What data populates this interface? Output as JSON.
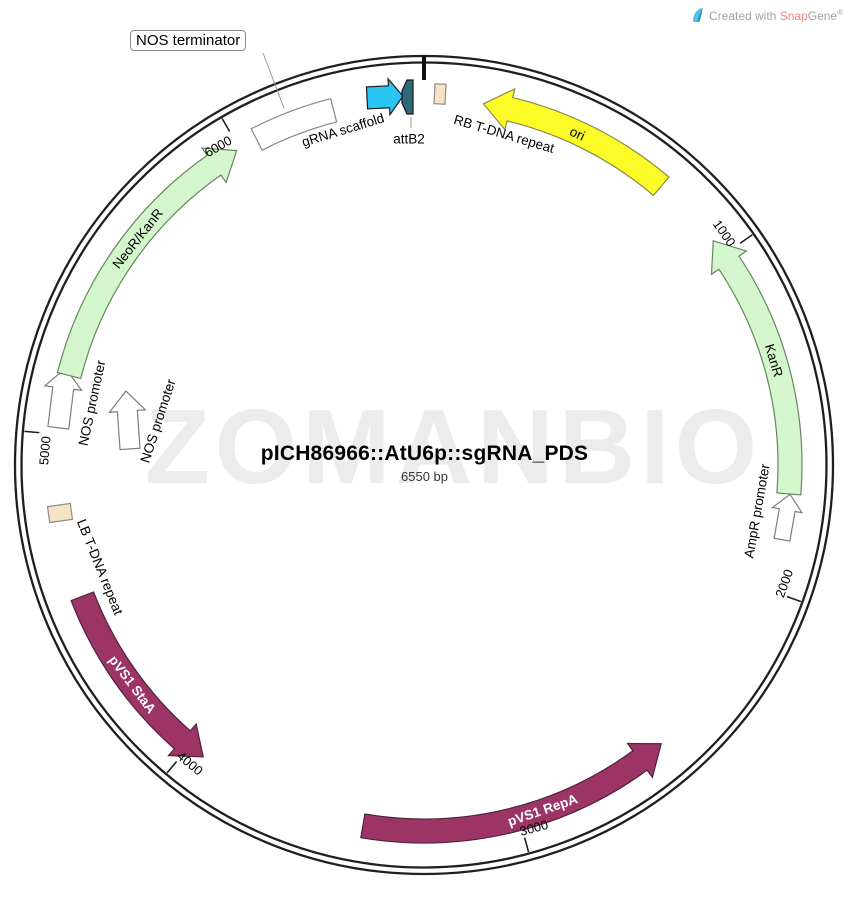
{
  "credit": {
    "created_with": "Created with",
    "brand_snap": "Snap",
    "brand_gene": "Gene",
    "registered": "®",
    "logo_color": "#55c0e8"
  },
  "watermark": "ZOMANBIO",
  "plasmid": {
    "name": "pICH86966::AtU6p::sgRNA_PDS",
    "size_label": "6550 bp",
    "size_bp": 6550,
    "ticks": [
      {
        "bp": 1000,
        "label": "1000"
      },
      {
        "bp": 2000,
        "label": "2000"
      },
      {
        "bp": 3000,
        "label": "3000"
      },
      {
        "bp": 4000,
        "label": "4000"
      },
      {
        "bp": 5000,
        "label": "5000"
      },
      {
        "bp": 6000,
        "label": "6000"
      }
    ],
    "colors": {
      "backbone": "#1f1f1f",
      "cds_green": "#d4f6cc",
      "cds_green_stroke": "#69845f",
      "ori_yellow": "#fbfb28",
      "ori_yellow_stroke": "#8a8a4e",
      "rep_maroon": "#9c3566",
      "rep_maroon_stroke": "#4f2240",
      "scaffold_cyan": "#29c6f3",
      "attb_teal": "#2e6a7c",
      "tdna_tan": "#f6e3c3",
      "white_feature": "#ffffff",
      "feature_gray_stroke": "#7d7d7d"
    },
    "features": [
      {
        "id": "ori",
        "label": "ori",
        "shape": "arc-arrow",
        "start": 170,
        "end": 735,
        "direction": "ccw",
        "fill": "#fbfb28",
        "stroke": "#8a8a4e",
        "label_color": "#000000",
        "label_bold": false
      },
      {
        "id": "kanr",
        "label": "KanR",
        "shape": "arc-arrow",
        "start": 950,
        "end": 1720,
        "direction": "ccw",
        "fill": "#d4f6cc",
        "stroke": "#69845f",
        "label_color": "#000000",
        "label_bold": false
      },
      {
        "id": "ampr_promoter",
        "label": "AmpR promoter",
        "shape": "block-arrow",
        "fill": "#ffffff",
        "stroke": "#7d7d7d",
        "label_color": "#000000",
        "label_bold": false
      },
      {
        "id": "pvs1_repa",
        "label": "pVS1 RepA",
        "shape": "arc-arrow",
        "start": 2540,
        "end": 3450,
        "direction": "ccw",
        "fill": "#9c3566",
        "stroke": "#4f2240",
        "label_color": "#ffffff",
        "label_bold": true
      },
      {
        "id": "pvs1_staa",
        "label": "pVS1 StaA",
        "shape": "arc-arrow",
        "start": 3950,
        "end": 4530,
        "direction": "ccw",
        "fill": "#9c3566",
        "stroke": "#4f2240",
        "label_color": "#ffffff",
        "label_bold": true
      },
      {
        "id": "lb_tdna",
        "label": "LB T-DNA repeat",
        "shape": "box",
        "fill": "#f6e3c3",
        "stroke": "#8c8c8c",
        "label_color": "#000000",
        "label_bold": false
      },
      {
        "id": "nos_promoter_a",
        "label": "NOS promoter",
        "shape": "block-arrow",
        "fill": "#ffffff",
        "stroke": "#7d7d7d",
        "label_color": "#000000",
        "label_bold": false
      },
      {
        "id": "nos_promoter_b",
        "label": "NOS promoter",
        "shape": "block-arrow",
        "fill": "#ffffff",
        "stroke": "#7d7d7d",
        "label_color": "#000000",
        "label_bold": false
      },
      {
        "id": "neor_kanr",
        "label": "NeoR/KanR",
        "shape": "arc-arrow",
        "start": 5170,
        "end": 5990,
        "direction": "cw",
        "fill": "#d4f6cc",
        "stroke": "#69845f",
        "label_color": "#000000",
        "label_bold": false
      },
      {
        "id": "nos_terminator",
        "label": "NOS terminator",
        "shape": "arc-box",
        "start": 6055,
        "end": 6290,
        "fill": "#ffffff",
        "stroke": "#888888",
        "label_color": "#000000",
        "label_bold": false,
        "boxed_label": true
      },
      {
        "id": "grna_scaffold",
        "label": "gRNA scaffold",
        "shape": "block-arrow",
        "fill": "#29c6f3",
        "stroke": "#1c1c1c",
        "label_color": "#000000",
        "label_bold": false
      },
      {
        "id": "attb2",
        "label": "attB2",
        "shape": "small-arrow",
        "fill": "#2e6a7c",
        "stroke": "#141414",
        "label_color": "#000000",
        "label_bold": false
      },
      {
        "id": "rb_tdna",
        "label": "RB T-DNA repeat",
        "shape": "box",
        "fill": "#f6e3c3",
        "stroke": "#8c8c8c",
        "label_color": "#000000",
        "label_bold": false
      }
    ]
  }
}
